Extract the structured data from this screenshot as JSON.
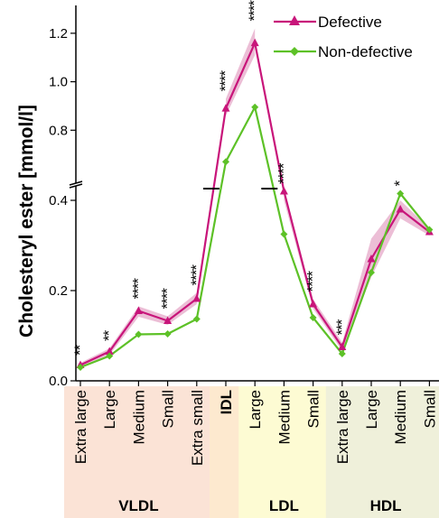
{
  "chart_data": {
    "type": "line",
    "ylabel": "Cholesteryl ester [mmol/l]",
    "y_axis_lower": {
      "ylim": [
        0.0,
        0.42
      ],
      "ticks": [
        0.0,
        0.2,
        0.4
      ],
      "tick_labels": [
        "0.0",
        "0.2",
        "0.4"
      ]
    },
    "y_axis_upper": {
      "ylim": [
        0.6,
        1.3
      ],
      "ticks": [
        0.8,
        1.0,
        1.2
      ],
      "tick_labels": [
        "0.8",
        "1.0",
        "1.2"
      ]
    },
    "categories": [
      "Extra large",
      "Large",
      "Medium",
      "Small",
      "Extra small",
      "IDL",
      "Large",
      "Medium",
      "Small",
      "Extra large",
      "Large",
      "Medium",
      "Small"
    ],
    "groups": [
      {
        "label": "VLDL",
        "start": 0,
        "end": 4,
        "color": "#fbe3d6"
      },
      {
        "label": "IDL",
        "start": 5,
        "end": 5,
        "color": "#fde9cf"
      },
      {
        "label": "LDL",
        "start": 6,
        "end": 8,
        "color": "#fdfbd3"
      },
      {
        "label": "HDL",
        "start": 9,
        "end": 12,
        "color": "#eff0da"
      }
    ],
    "series": [
      {
        "name": "Defective",
        "color": "#c8157a",
        "band_color": "#e6a8c8",
        "marker": "triangle",
        "values": [
          0.035,
          0.065,
          0.155,
          0.133,
          0.182,
          0.89,
          1.16,
          0.42,
          0.17,
          0.075,
          0.27,
          0.38,
          0.33
        ],
        "ci_low": [
          0.03,
          0.057,
          0.142,
          0.124,
          0.17,
          0.86,
          1.11,
          0.4,
          0.16,
          0.066,
          0.23,
          0.36,
          0.322
        ],
        "ci_high": [
          0.04,
          0.072,
          0.165,
          0.143,
          0.195,
          0.93,
          1.22,
          0.42,
          0.181,
          0.085,
          0.315,
          0.4,
          0.338
        ]
      },
      {
        "name": "Non-defective",
        "color": "#5dc127",
        "marker": "diamond",
        "values": [
          0.03,
          0.055,
          0.103,
          0.104,
          0.137,
          0.67,
          0.895,
          0.325,
          0.14,
          0.06,
          0.24,
          0.415,
          0.335
        ]
      }
    ],
    "significance": [
      "**",
      "**",
      "****",
      "****",
      "****",
      "****",
      "****",
      "****",
      "****",
      "***",
      "",
      "*",
      ""
    ],
    "legend": {
      "position": "top-right",
      "entries": [
        "Defective",
        "Non-defective"
      ]
    },
    "grid": false
  }
}
